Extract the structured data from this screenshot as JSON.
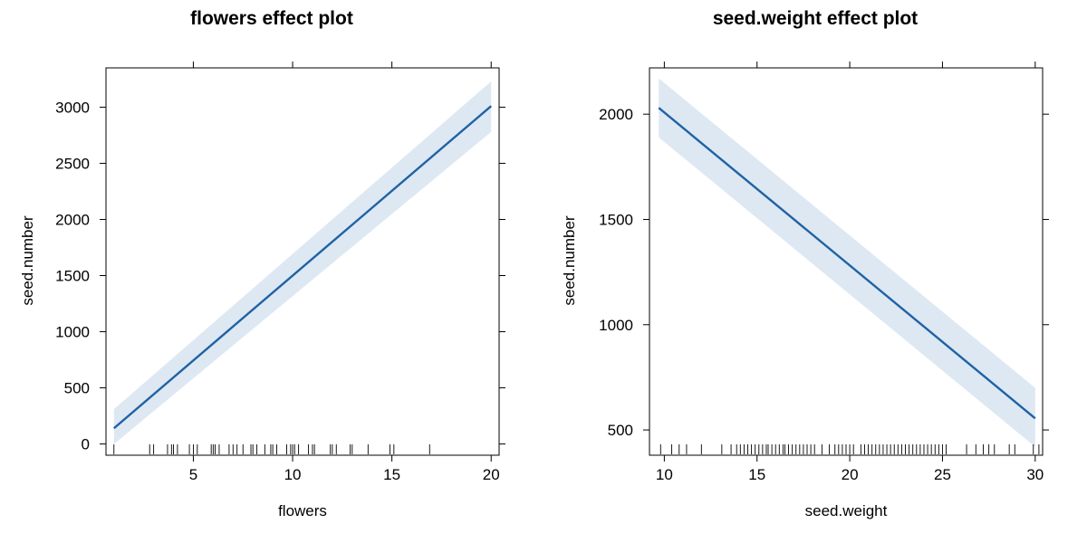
{
  "colors": {
    "line": "#1f62a4",
    "band": "#dde8f3",
    "frame": "#000000",
    "rug": "#000000"
  },
  "chart_data": [
    {
      "type": "line",
      "title": "flowers effect plot",
      "xlabel": "flowers",
      "ylabel": "seed.number",
      "xlim": [
        0.6,
        20.4
      ],
      "ylim": [
        -100,
        3350
      ],
      "xticks": [
        5,
        10,
        15,
        20
      ],
      "yticks": [
        0,
        500,
        1000,
        1500,
        2000,
        2500,
        3000
      ],
      "x": [
        1,
        20
      ],
      "y": [
        140,
        3010
      ],
      "band_lower": [
        0,
        2780
      ],
      "band_upper": [
        310,
        3230
      ],
      "rug": [
        1,
        2.8,
        3,
        3.7,
        3.9,
        4,
        4.2,
        4.8,
        5,
        5.2,
        5.9,
        6,
        6.1,
        6.3,
        6.8,
        7,
        7.2,
        7.5,
        7.9,
        8,
        8.2,
        8.6,
        8.9,
        9,
        9.2,
        9.7,
        9.9,
        10,
        10.1,
        10.3,
        10.8,
        11,
        11.1,
        11.9,
        12,
        12.2,
        12.9,
        13,
        13.8,
        14.9,
        15.1,
        16.9
      ],
      "grid": false
    },
    {
      "type": "line",
      "title": "seed.weight effect plot",
      "xlabel": "seed.weight",
      "ylabel": "seed.number",
      "xlim": [
        9.2,
        30.4
      ],
      "ylim": [
        380,
        2220
      ],
      "xticks": [
        10,
        15,
        20,
        25,
        30
      ],
      "yticks": [
        500,
        1000,
        1500,
        2000
      ],
      "x": [
        9.7,
        30
      ],
      "y": [
        2030,
        555
      ],
      "band_lower": [
        1890,
        420
      ],
      "band_upper": [
        2170,
        700
      ],
      "rug": [
        9.8,
        10.4,
        10.8,
        11.2,
        12,
        13.1,
        13.6,
        13.9,
        14.1,
        14.3,
        14.5,
        14.7,
        14.9,
        15.1,
        15.3,
        15.5,
        15.6,
        15.8,
        16,
        16.2,
        16.4,
        16.5,
        16.7,
        16.9,
        17.1,
        17.3,
        17.5,
        17.7,
        17.9,
        18.1,
        18.5,
        18.9,
        19.2,
        19.4,
        19.6,
        19.8,
        20,
        20.2,
        20.6,
        20.8,
        21,
        21.2,
        21.4,
        21.6,
        21.8,
        22,
        22.2,
        22.4,
        22.6,
        22.8,
        23,
        23.2,
        23.4,
        23.6,
        23.8,
        24,
        24.2,
        24.4,
        24.6,
        24.8,
        25,
        25.2,
        26.3,
        26.8,
        27.2,
        27.5,
        27.8,
        28.6,
        28.9,
        29.9,
        30.2
      ],
      "grid": false
    }
  ]
}
